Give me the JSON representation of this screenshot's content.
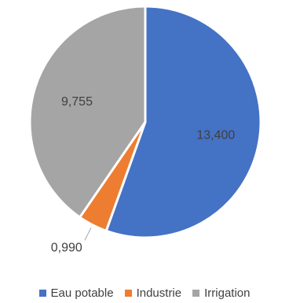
{
  "chart_data": {
    "type": "pie",
    "categories": [
      "Eau potable",
      "Industrie",
      "Irrigation"
    ],
    "values": [
      13.4,
      0.99,
      9.755
    ],
    "data_labels": [
      "13,400",
      "0,990",
      "9,755"
    ],
    "colors": [
      "#4472C4",
      "#ED7D31",
      "#A5A5A5"
    ],
    "legend_position": "bottom"
  }
}
